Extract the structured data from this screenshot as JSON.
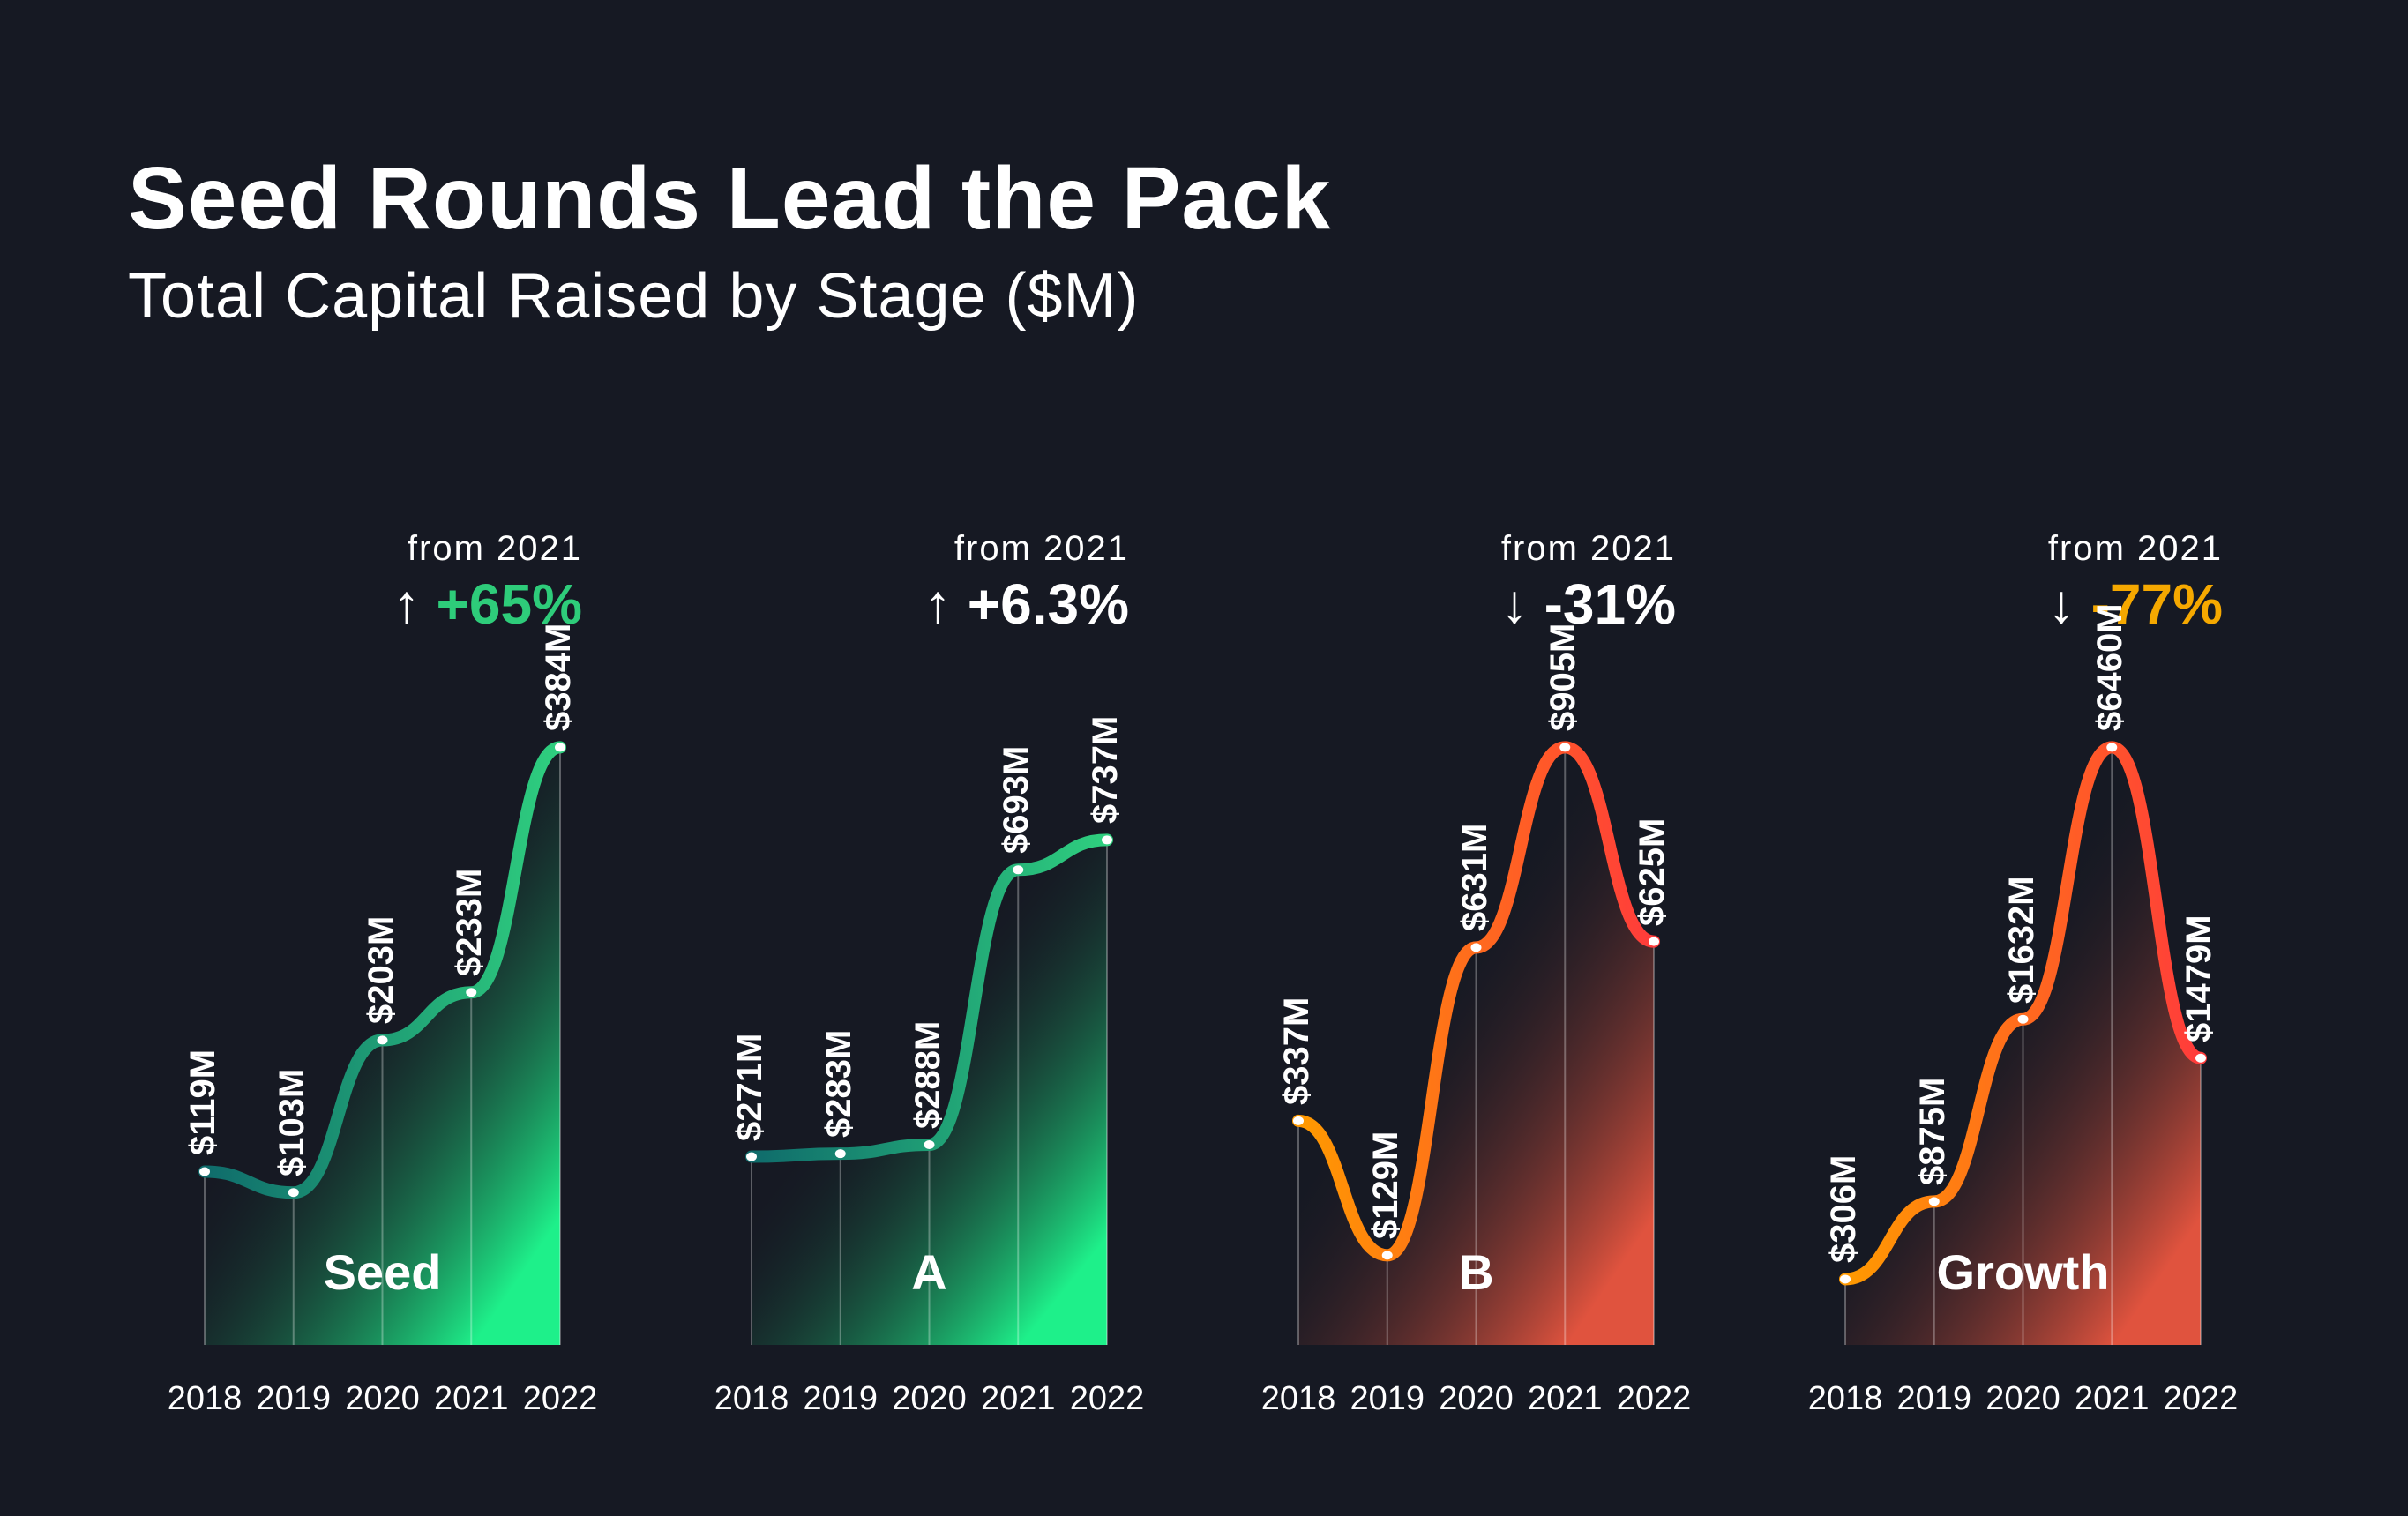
{
  "header": {
    "title": "Seed Rounds Lead the Pack",
    "subtitle": "Total Capital Raised by Stage ($M)"
  },
  "chart_data": [
    {
      "type": "area",
      "stage": "Seed",
      "title": "Seed",
      "x": [
        "2018",
        "2019",
        "2020",
        "2021",
        "2022"
      ],
      "values": [
        119,
        103,
        203,
        233,
        384
      ],
      "labels": [
        "$119M",
        "$103M",
        "$203M",
        "$233M",
        "$384M"
      ],
      "plotted_level": [
        0.29,
        0.255,
        0.51,
        0.59,
        1.0
      ],
      "change_caption": "from 2021",
      "change_value": "+65%",
      "change_direction": "up",
      "change_color": "#2ecc7a",
      "line_colors": [
        "#0f6b6b",
        "#2fd07f"
      ],
      "fill_colors": [
        "#16192300",
        "#1ef08a"
      ]
    },
    {
      "type": "area",
      "stage": "A",
      "title": "A",
      "x": [
        "2018",
        "2019",
        "2020",
        "2021",
        "2022"
      ],
      "values": [
        271,
        283,
        288,
        693,
        737
      ],
      "labels": [
        "$271M",
        "$283M",
        "$288M",
        "$693M",
        "$737M"
      ],
      "plotted_level": [
        0.315,
        0.32,
        0.335,
        0.795,
        0.845
      ],
      "change_caption": "from 2021",
      "change_value": "+6.3%",
      "change_direction": "up",
      "change_color": "#ffffff",
      "line_colors": [
        "#0f6b6b",
        "#2fd07f"
      ],
      "fill_colors": [
        "#16192300",
        "#1ef08a"
      ]
    },
    {
      "type": "area",
      "stage": "B",
      "title": "B",
      "x": [
        "2018",
        "2019",
        "2020",
        "2021",
        "2022"
      ],
      "values": [
        337,
        129,
        631,
        905,
        625
      ],
      "labels": [
        "$337M",
        "$129M",
        "$631M",
        "$905M",
        "$625M"
      ],
      "plotted_level": [
        0.375,
        0.15,
        0.665,
        1.0,
        0.675
      ],
      "change_caption": "from 2021",
      "change_value": "-31%",
      "change_direction": "down",
      "change_color": "#ffffff",
      "line_colors": [
        "#ff9a00",
        "#ff3b3b"
      ],
      "fill_colors": [
        "#16192300",
        "#e0533e"
      ]
    },
    {
      "type": "area",
      "stage": "Growth",
      "title": "Growth",
      "x": [
        "2018",
        "2019",
        "2020",
        "2021",
        "2022"
      ],
      "values": [
        306,
        875,
        1632,
        6460,
        1479
      ],
      "labels": [
        "$306M",
        "$875M",
        "$1632M",
        "$6460M",
        "$1479M"
      ],
      "plotted_level": [
        0.11,
        0.24,
        0.545,
        1.0,
        0.48
      ],
      "change_caption": "from 2021",
      "change_value": "-77%",
      "change_direction": "down",
      "change_color": "#f5a800",
      "line_colors": [
        "#ff9a00",
        "#ff3b3b"
      ],
      "fill_colors": [
        "#16192300",
        "#e0533e"
      ]
    }
  ],
  "icons": {
    "up": "↑",
    "down": "↓"
  }
}
